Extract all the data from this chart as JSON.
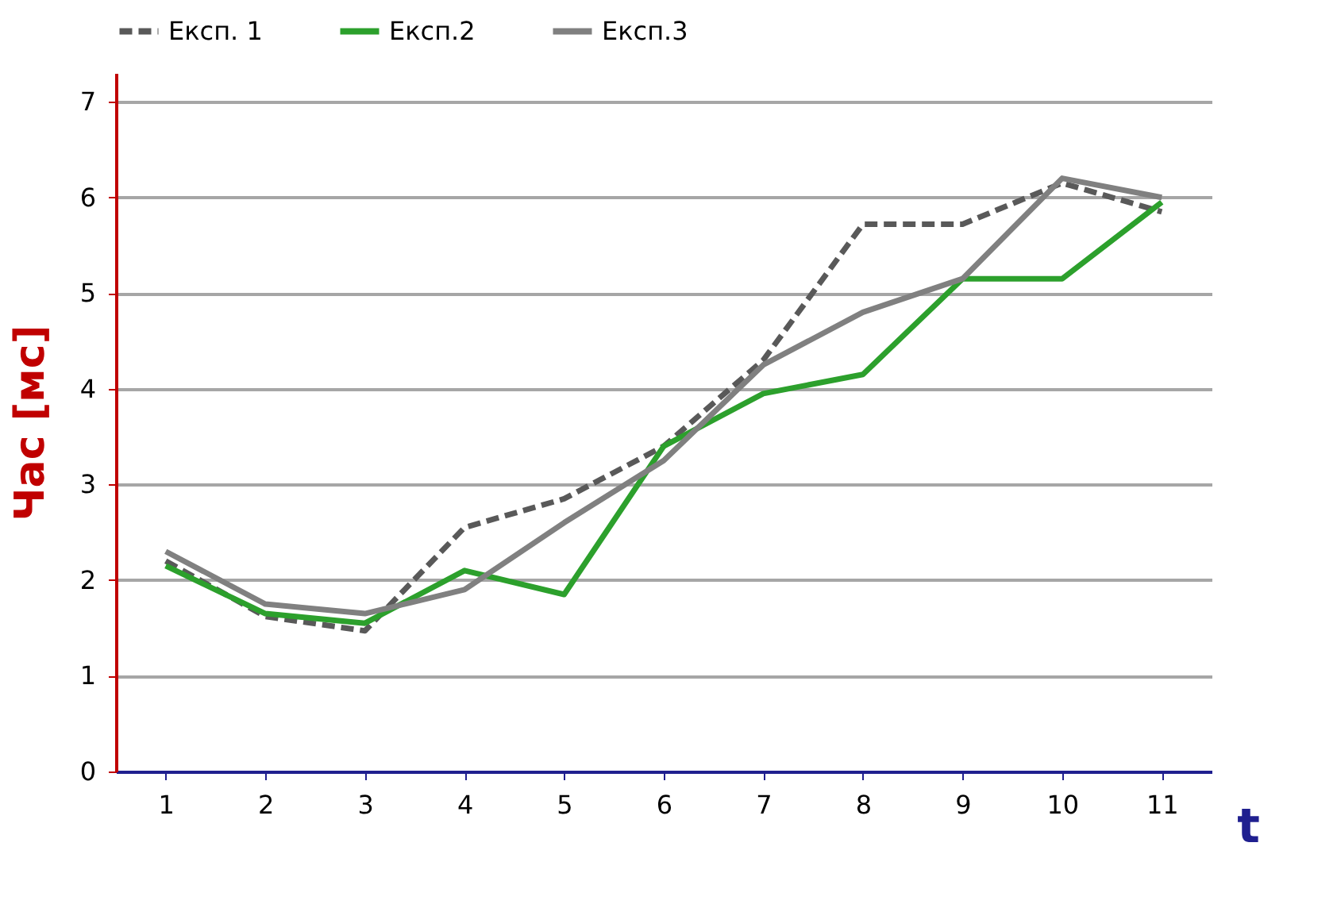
{
  "chart_data": {
    "type": "line",
    "xlabel": "t",
    "ylabel": "Час [мс]",
    "categories": [
      "1",
      "2",
      "3",
      "4",
      "5",
      "6",
      "7",
      "8",
      "9",
      "10",
      "11"
    ],
    "series": [
      {
        "name": "Експ. 1",
        "color": "#595959",
        "line_style": "dashed",
        "values": [
          2.2,
          1.62,
          1.47,
          2.55,
          2.85,
          3.4,
          4.3,
          5.72,
          5.72,
          6.15,
          5.85
        ]
      },
      {
        "name": "Експ.2",
        "color": "#2ca02c",
        "line_style": "solid",
        "values": [
          2.15,
          1.65,
          1.55,
          2.1,
          1.85,
          3.4,
          3.95,
          4.15,
          5.15,
          5.15,
          5.95
        ]
      },
      {
        "name": "Експ.3",
        "color": "#808080",
        "line_style": "solid",
        "values": [
          2.3,
          1.75,
          1.65,
          1.9,
          2.6,
          3.25,
          4.25,
          4.8,
          5.15,
          6.2,
          6.0
        ]
      }
    ],
    "ylim": [
      0,
      7.3
    ],
    "yticks": [
      0,
      1,
      2,
      3,
      4,
      5,
      6,
      7
    ],
    "grid": "y",
    "legend": "top",
    "marker": "none"
  }
}
